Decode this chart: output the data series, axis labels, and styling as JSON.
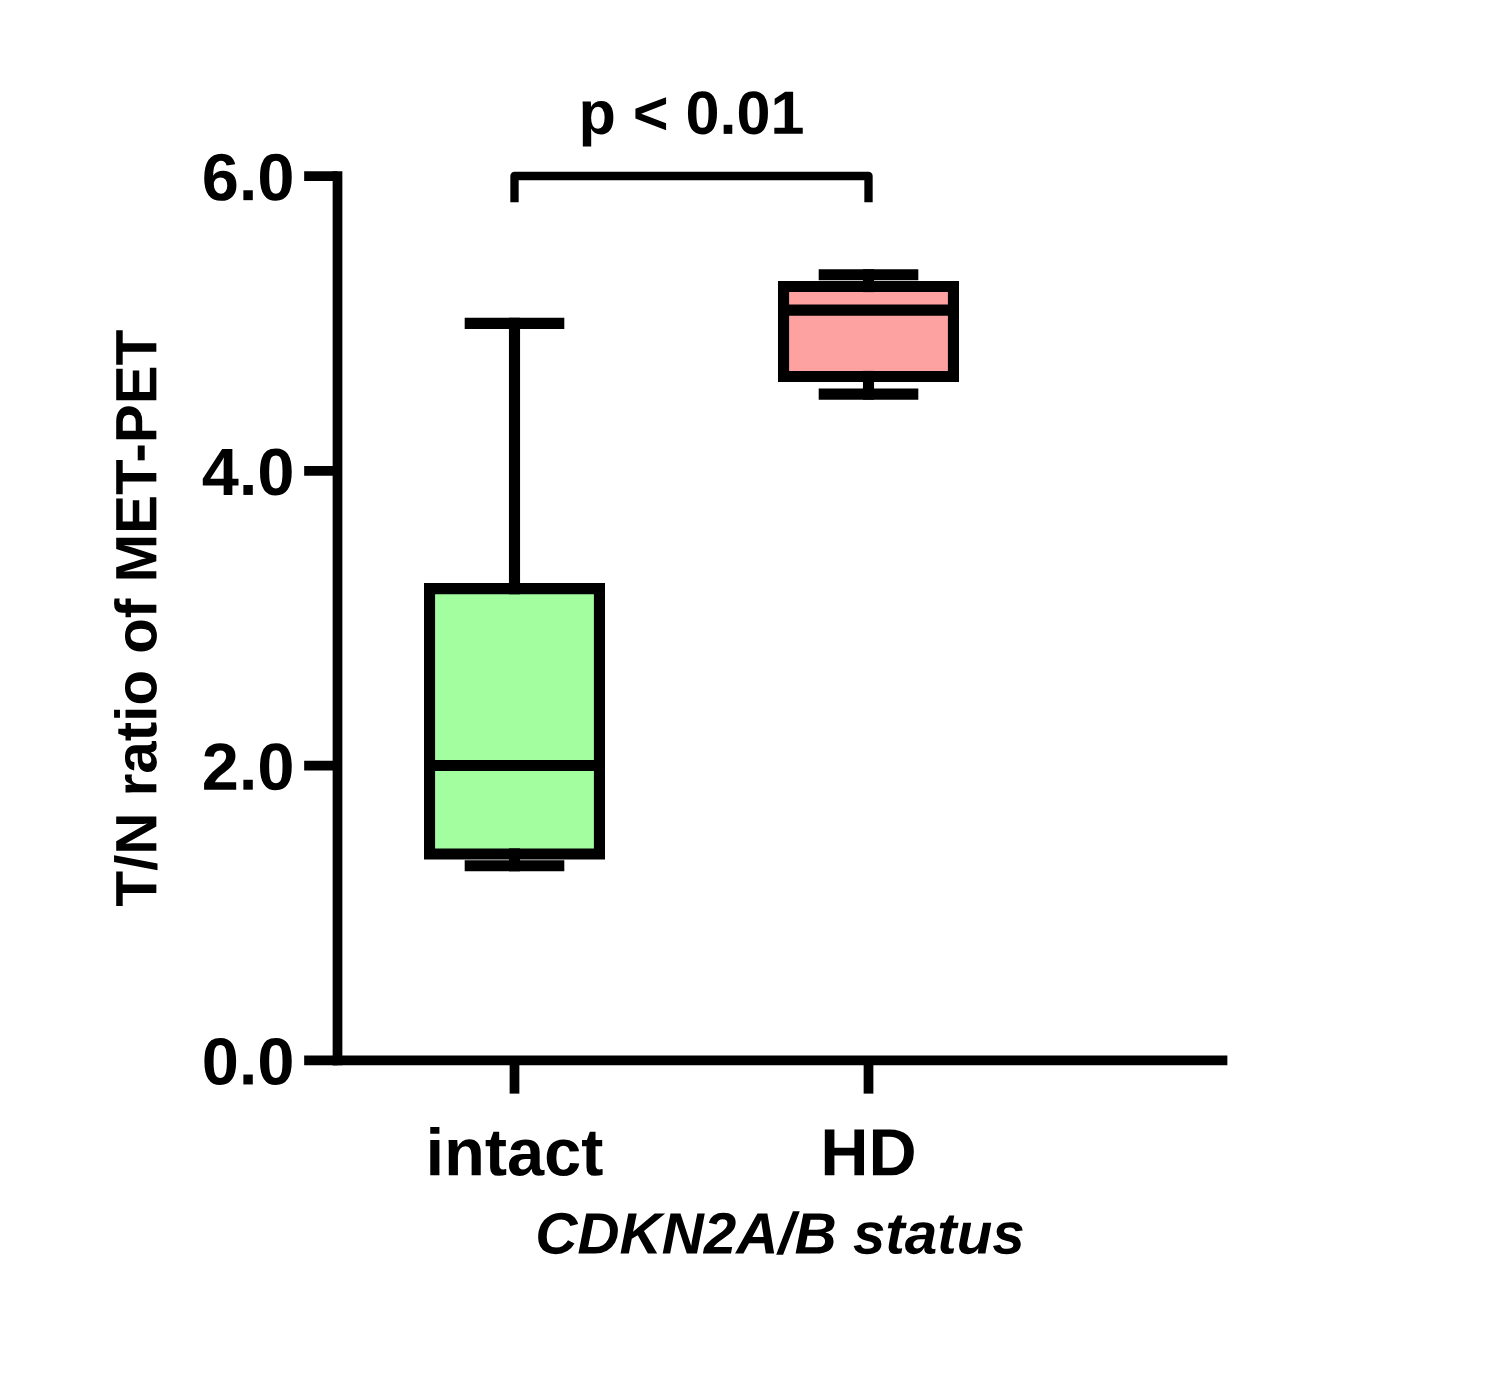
{
  "chart_data": {
    "type": "box",
    "xlabel": "CDKN2A/B status",
    "ylabel": "T/N ratio of MET-PET",
    "categories": [
      "intact",
      "HD"
    ],
    "colors": [
      "#a3fe9f",
      "#fea1a1"
    ],
    "boxes": [
      {
        "low": 1.32,
        "q1": 1.4,
        "median": 2.0,
        "q3": 3.2,
        "high": 5.0
      },
      {
        "low": 4.52,
        "q1": 4.64,
        "median": 5.09,
        "q3": 5.25,
        "high": 5.33
      }
    ],
    "ylim": [
      0,
      6
    ],
    "yticks": [
      {
        "value": 0,
        "label": "0.0"
      },
      {
        "value": 2,
        "label": "2.0"
      },
      {
        "value": 4,
        "label": "4.0"
      },
      {
        "value": 6,
        "label": "6.0"
      }
    ],
    "annotations": [
      "p < 0.01"
    ],
    "grid": false
  }
}
